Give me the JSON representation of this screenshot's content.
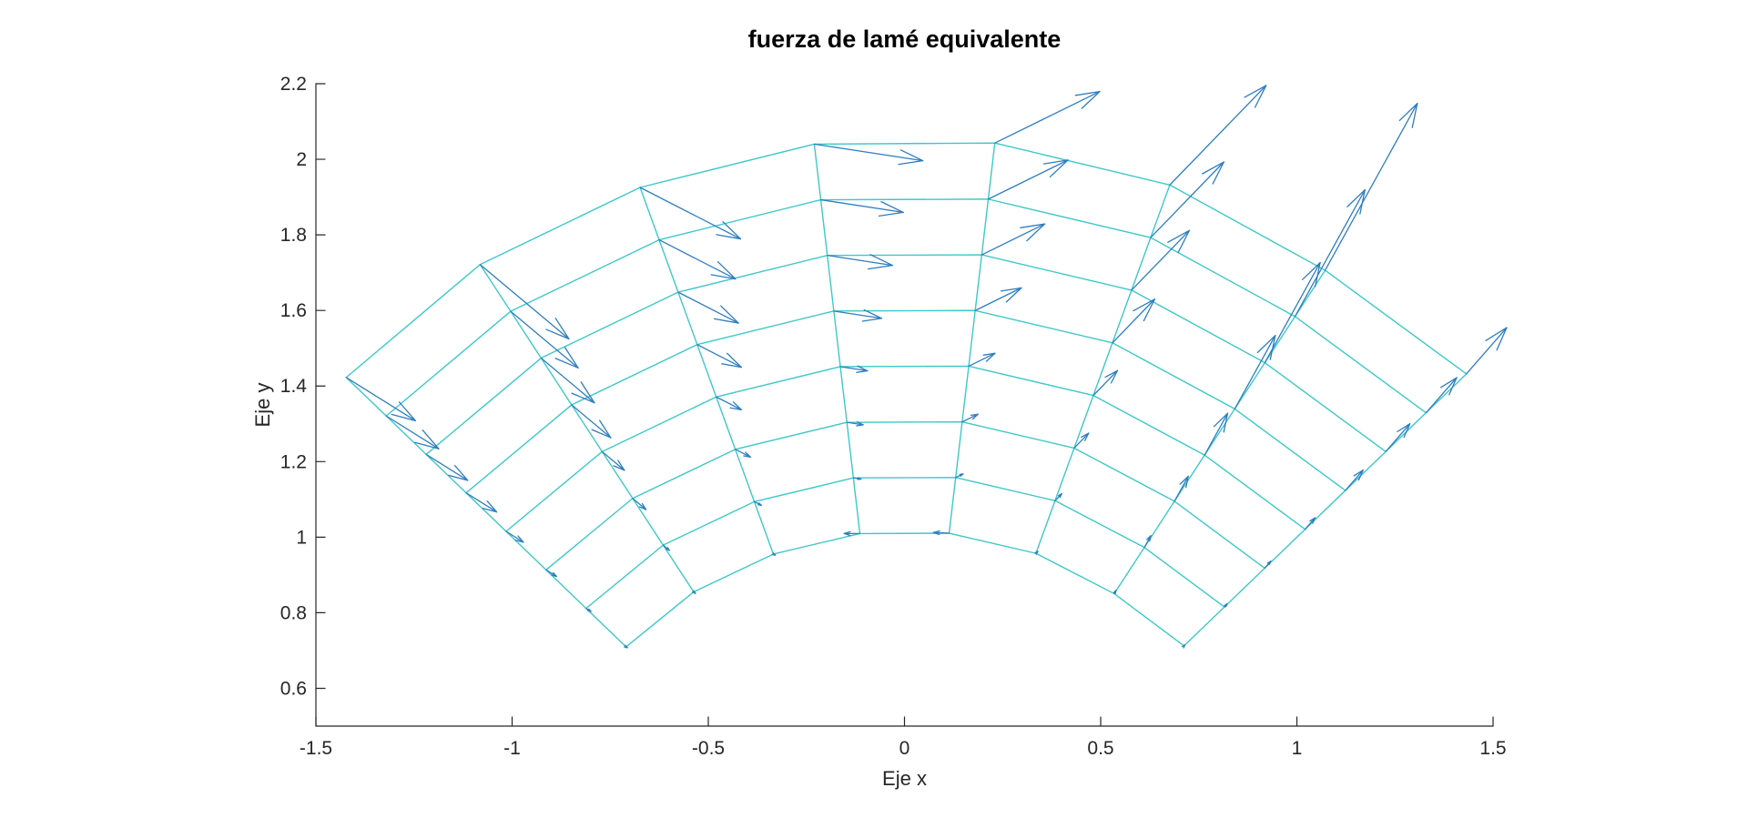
{
  "figure": {
    "title": "fuerza de lamé equivalente",
    "xlabel": "Eje x",
    "ylabel": "Eje y",
    "background_color": "#ffffff"
  },
  "axes": {
    "xlim": [
      -1.5,
      1.5
    ],
    "ylim": [
      0.5,
      2.2
    ],
    "xticks": [
      -1.5,
      -1,
      -0.5,
      0,
      0.5,
      1,
      1.5
    ],
    "xtick_labels": [
      "-1.5",
      "-1",
      "-0.5",
      "0",
      "0.5",
      "1",
      "1.5"
    ],
    "yticks": [
      0.6,
      0.8,
      1,
      1.2,
      1.4,
      1.6,
      1.8,
      2,
      2.2
    ],
    "ytick_labels": [
      "0.6",
      "0.8",
      "1",
      "1.2",
      "1.4",
      "1.6",
      "1.8",
      "2",
      "2.2"
    ],
    "axis_color": "#262626",
    "box": "off",
    "tick_dir": "in"
  },
  "chart_data": {
    "type": "quiver",
    "description": "Vector field (equivalent Lamé force) plotted at the nodes of a deformed annular-sector finite element mesh; mesh spokes span 135°→45°, rings span r≈1→2 with outward bulge near 90°.",
    "mesh_color": "#3ec8c8",
    "arrow_color": "#2e7dc0",
    "spokes_theta_deg": [
      135,
      122.14,
      109.29,
      96.43,
      83.57,
      70.71,
      57.86,
      45
    ],
    "rings_r": [
      1,
      1.1429,
      1.2857,
      1.4286,
      1.5714,
      1.7143,
      1.8571,
      2
    ],
    "nodes": [
      [
        [
          -0.7097,
          0.7097
        ],
        [
          -0.8115,
          0.8115
        ],
        [
          -0.9134,
          0.9134
        ],
        [
          -1.0153,
          1.0153
        ],
        [
          -1.1171,
          1.1171
        ],
        [
          -1.219,
          1.219
        ],
        [
          -1.3208,
          1.3208
        ],
        [
          -1.4227,
          1.4227
        ]
      ],
      [
        [
          -0.5373,
          0.8551
        ],
        [
          -0.6151,
          0.9789
        ],
        [
          -0.6928,
          1.1026
        ],
        [
          -0.7706,
          1.2264
        ],
        [
          -0.8483,
          1.3501
        ],
        [
          -0.9261,
          1.4739
        ],
        [
          -1.0038,
          1.5976
        ],
        [
          -1.0816,
          1.7214
        ]
      ],
      [
        [
          -0.3342,
          0.9552
        ],
        [
          -0.3827,
          1.0939
        ],
        [
          -0.4312,
          1.2324
        ],
        [
          -0.4798,
          1.3711
        ],
        [
          -0.5283,
          1.5096
        ],
        [
          -0.5768,
          1.6483
        ],
        [
          -0.6253,
          1.7868
        ],
        [
          -0.6738,
          1.9255
        ]
      ],
      [
        [
          -0.1137,
          1.0095
        ],
        [
          -0.1303,
          1.1568
        ],
        [
          -0.1469,
          1.3039
        ],
        [
          -0.1635,
          1.4512
        ],
        [
          -0.1801,
          1.5984
        ],
        [
          -0.1967,
          1.7457
        ],
        [
          -0.2133,
          1.8928
        ],
        [
          -0.2299,
          2.0401
        ]
      ],
      [
        [
          0.1138,
          1.0104
        ],
        [
          0.1304,
          1.1578
        ],
        [
          0.147,
          1.305
        ],
        [
          0.1637,
          1.4525
        ],
        [
          0.1802,
          1.5998
        ],
        [
          0.1969,
          1.7472
        ],
        [
          0.2135,
          1.8945
        ],
        [
          0.2302,
          2.0431
        ]
      ],
      [
        [
          0.3349,
          0.9572
        ],
        [
          0.3837,
          1.0965
        ],
        [
          0.4324,
          1.2357
        ],
        [
          0.4812,
          1.375
        ],
        [
          0.5299,
          1.5143
        ],
        [
          0.5786,
          1.6536
        ],
        [
          0.6273,
          1.7928
        ],
        [
          0.6761,
          1.9321
        ]
      ],
      [
        [
          0.5344,
          0.8505
        ],
        [
          0.6113,
          0.9728
        ],
        [
          0.688,
          1.095
        ],
        [
          0.7648,
          1.2172
        ],
        [
          0.8416,
          1.3394
        ],
        [
          0.9184,
          1.4617
        ],
        [
          0.9952,
          1.5839
        ],
        [
          1.072,
          1.7062
        ]
      ],
      [
        [
          0.7124,
          0.7124
        ],
        [
          0.8152,
          0.8152
        ],
        [
          0.918,
          0.918
        ],
        [
          1.0208,
          1.0208
        ],
        [
          1.1235,
          1.1235
        ],
        [
          1.2263,
          1.2263
        ],
        [
          1.3291,
          1.3291
        ],
        [
          1.4319,
          1.4319
        ]
      ]
    ],
    "arrows_uv": [
      [
        [
          0.0035,
          -0.0023
        ],
        [
          0.0123,
          -0.008
        ],
        [
          0.0264,
          -0.0172
        ],
        [
          0.044,
          -0.0286
        ],
        [
          0.0775,
          -0.0503
        ],
        [
          0.1057,
          -0.0686
        ],
        [
          0.1338,
          -0.0869
        ],
        [
          0.1761,
          -0.1144
        ]
      ],
      [
        [
          0.0045,
          -0.0039
        ],
        [
          0.0158,
          -0.0138
        ],
        [
          0.034,
          -0.0295
        ],
        [
          0.0566,
          -0.0492
        ],
        [
          0.0996,
          -0.0866
        ],
        [
          0.1358,
          -0.1181
        ],
        [
          0.1721,
          -0.1496
        ],
        [
          0.2264,
          -0.1968
        ]
      ],
      [
        [
          0.0051,
          -0.0027
        ],
        [
          0.0179,
          -0.0095
        ],
        [
          0.0384,
          -0.0204
        ],
        [
          0.064,
          -0.034
        ],
        [
          0.1126,
          -0.0599
        ],
        [
          0.1536,
          -0.0817
        ],
        [
          0.1946,
          -0.1035
        ],
        [
          0.256,
          -0.1362
        ]
      ],
      [
        [
          -0.04,
          0.0
        ],
        [
          0.0194,
          -0.0031
        ],
        [
          0.0415,
          -0.0066
        ],
        [
          0.0692,
          -0.011
        ],
        [
          0.1217,
          -0.0193
        ],
        [
          0.1659,
          -0.0263
        ],
        [
          0.2102,
          -0.0333
        ],
        [
          0.2766,
          -0.0438
        ]
      ],
      [
        [
          -0.04,
          0.002
        ],
        [
          0.0187,
          0.0095
        ],
        [
          0.0401,
          0.0204
        ],
        [
          0.0668,
          0.034
        ],
        [
          0.1176,
          0.0599
        ],
        [
          0.1604,
          0.0817
        ],
        [
          0.2031,
          0.1035
        ],
        [
          0.2673,
          0.1362
        ]
      ],
      [
        [
          0.0049,
          0.0053
        ],
        [
          0.0172,
          0.0184
        ],
        [
          0.0368,
          0.0395
        ],
        [
          0.0614,
          0.0658
        ],
        [
          0.108,
          0.1159
        ],
        [
          0.1473,
          0.158
        ],
        [
          0.1866,
          0.2001
        ],
        [
          0.2455,
          0.2633
        ]
      ],
      [
        [
          0.0047,
          0.0088
        ],
        [
          0.0164,
          0.0309
        ],
        [
          0.0352,
          0.0662
        ],
        [
          0.0587,
          0.1104
        ],
        [
          0.1033,
          0.1942
        ],
        [
          0.1409,
          0.2649
        ],
        [
          0.1784,
          0.3355
        ],
        [
          0.2348,
          0.4415
        ]
      ],
      [
        [
          0.0021,
          0.0025
        ],
        [
          0.0072,
          0.0086
        ],
        [
          0.0154,
          0.0184
        ],
        [
          0.0257,
          0.0306
        ],
        [
          0.0452,
          0.0539
        ],
        [
          0.0617,
          0.0735
        ],
        [
          0.0782,
          0.0931
        ],
        [
          0.1028,
          0.1226
        ]
      ]
    ]
  }
}
